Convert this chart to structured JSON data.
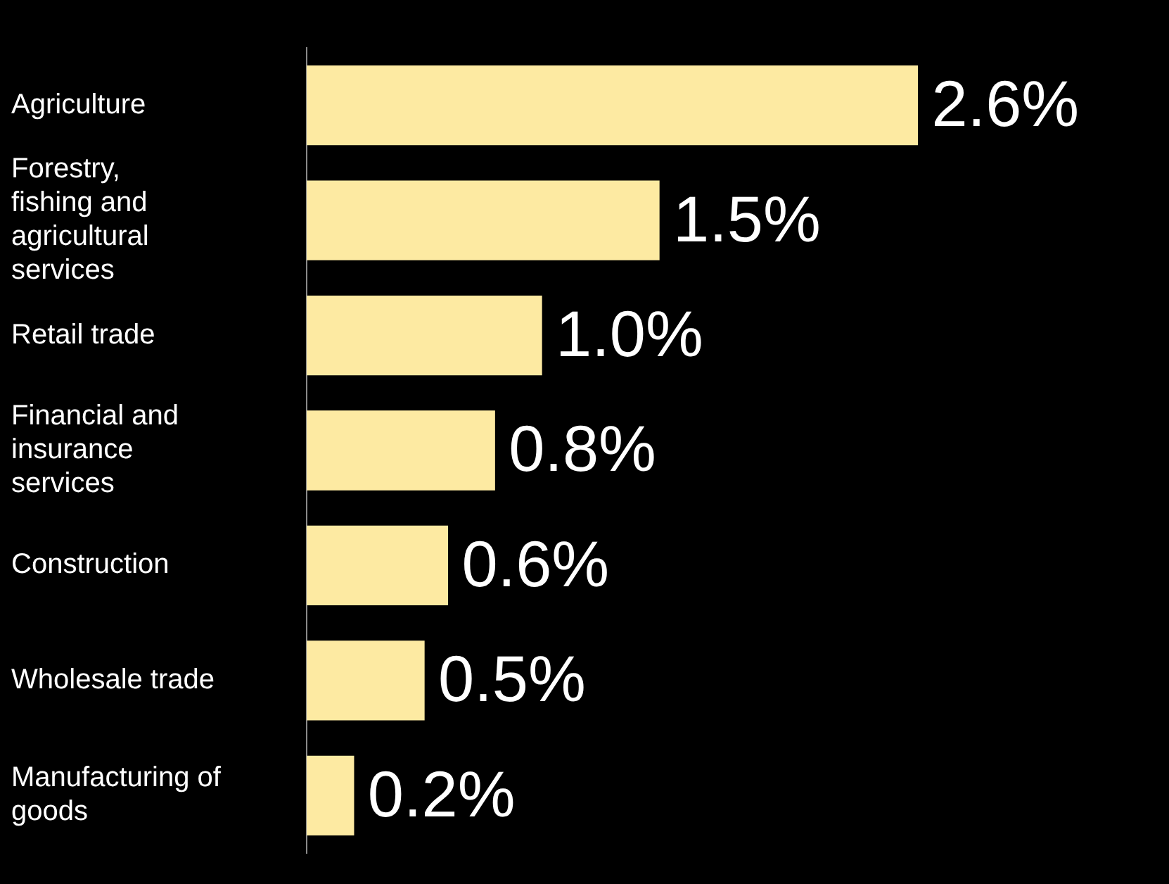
{
  "chart_data": {
    "type": "bar",
    "orientation": "horizontal",
    "categories": [
      "Agriculture",
      "Forestry, fishing and agricultural services",
      "Retail trade",
      "Financial and insurance services",
      "Construction",
      "Wholesale trade",
      "Manufacturing of goods"
    ],
    "values": [
      2.6,
      1.5,
      1.0,
      0.8,
      0.6,
      0.5,
      0.2
    ],
    "value_labels": [
      "2.6%",
      "1.5%",
      "1.0%",
      "0.8%",
      "0.6%",
      "0.5%",
      "0.2%"
    ],
    "color": "#fdeaa2"
  }
}
